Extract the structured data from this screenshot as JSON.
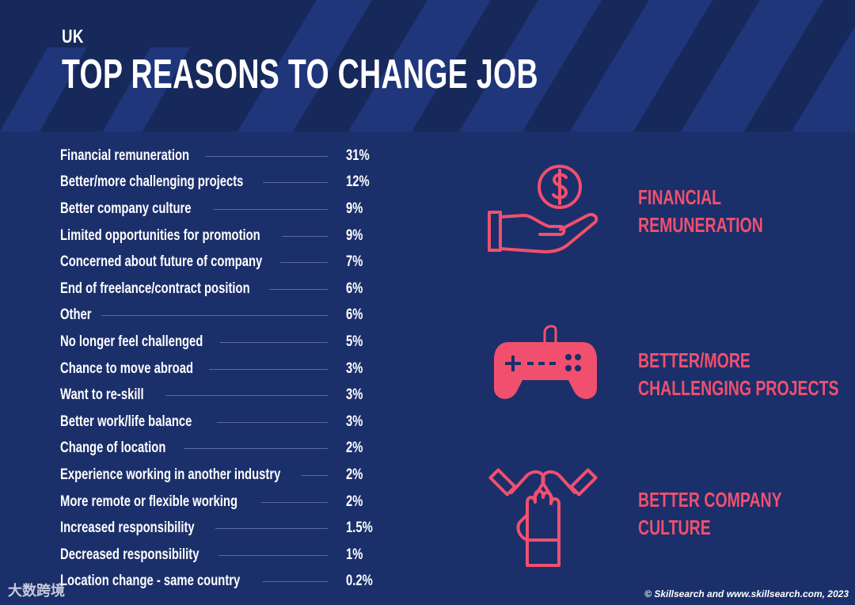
{
  "header": {
    "region": "UK",
    "title": "TOP REASONS TO CHANGE JOB"
  },
  "reasons": [
    {
      "label": "Financial remuneration",
      "value": "31%"
    },
    {
      "label": "Better/more challenging projects",
      "value": "12%"
    },
    {
      "label": "Better company culture",
      "value": "9%"
    },
    {
      "label": "Limited opportunities for promotion",
      "value": "9%"
    },
    {
      "label": "Concerned about future of company",
      "value": "7%"
    },
    {
      "label": "End of freelance/contract position",
      "value": "6%"
    },
    {
      "label": "Other",
      "value": "6%"
    },
    {
      "label": "No longer feel challenged",
      "value": "5%"
    },
    {
      "label": "Chance to move abroad",
      "value": "3%"
    },
    {
      "label": "Want to re-skill",
      "value": "3%"
    },
    {
      "label": "Better work/life balance",
      "value": "3%"
    },
    {
      "label": "Change of location",
      "value": "2%"
    },
    {
      "label": "Experience working in another industry",
      "value": "2%"
    },
    {
      "label": "More remote or flexible working",
      "value": "2%"
    },
    {
      "label": "Increased responsibility",
      "value": "1.5%"
    },
    {
      "label": "Decreased responsibility",
      "value": "1%"
    },
    {
      "label": "Location change - same country",
      "value": "0.2%"
    }
  ],
  "highlights": [
    {
      "line1": "FINANCIAL",
      "line2": "REMUNERATION",
      "icon": "hand-dollar-icon"
    },
    {
      "line1": "BETTER/MORE",
      "line2": "CHALLENGING PROJECTS",
      "icon": "gamepad-icon"
    },
    {
      "line1": "BETTER COMPANY",
      "line2": "CULTURE",
      "icon": "team-hands-icon"
    }
  ],
  "footer": {
    "credit": "© Skillsearch and www.skillsearch.com, 2023",
    "watermark": "大数跨境"
  },
  "colors": {
    "background": "#1b2f6b",
    "accent": "#f0506e",
    "text": "#ffffff"
  }
}
